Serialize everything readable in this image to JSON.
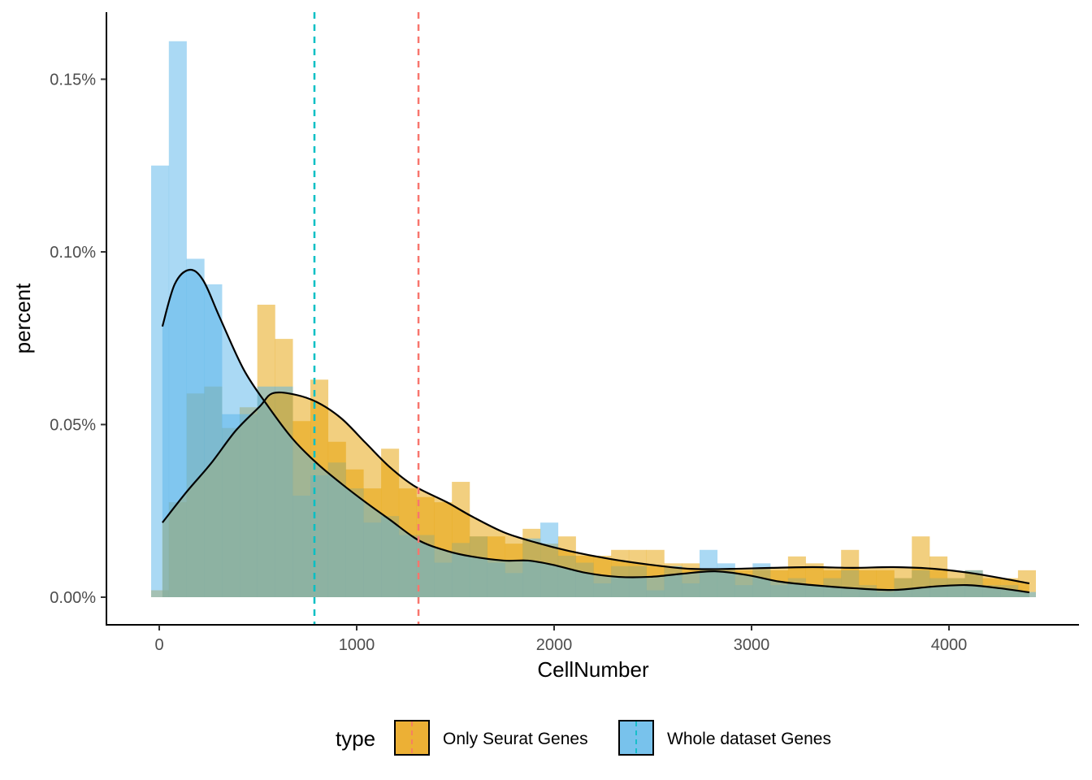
{
  "chart_data": {
    "type": "histogram",
    "title": "",
    "xlabel": "CellNumber",
    "ylabel": "percent",
    "xlim": [
      -130,
      4680
    ],
    "ylim": [
      -0.008,
      0.17
    ],
    "x_ticks": [
      0,
      1000,
      2000,
      3000,
      4000
    ],
    "x_tick_labels": [
      "0",
      "1000",
      "2000",
      "3000",
      "4000"
    ],
    "y_ticks": [
      0,
      0.05,
      0.1,
      0.15
    ],
    "y_tick_labels": [
      "0.00%",
      "0.05%",
      "0.10%",
      "0.15%"
    ],
    "grid": false,
    "legend": {
      "title": "type",
      "placement": "bottom"
    },
    "bin_start": -41,
    "binwidth": 89.6,
    "series": [
      {
        "name": "Only Seurat Genes",
        "color": "#E69F00",
        "vline_color": "#F8766D",
        "vline_x": 1313,
        "values": [
          0.002,
          0.0275,
          0.059,
          0.061,
          0.049,
          0.055,
          0.0847,
          0.0748,
          0.051,
          0.063,
          0.045,
          0.037,
          0.0315,
          0.043,
          0.0315,
          0.029,
          0.0275,
          0.0334,
          0.0176,
          0.0176,
          0.0155,
          0.0198,
          0.0155,
          0.0176,
          0.012,
          0.012,
          0.0137,
          0.0137,
          0.0137,
          0.0098,
          0.0098,
          0.0078,
          0.0078,
          0.0078,
          0.0078,
          0.0078,
          0.0118,
          0.0098,
          0.0078,
          0.0137,
          0.0078,
          0.0078,
          0.0055,
          0.0176,
          0.0118,
          0.0055,
          0.0078,
          0.0055,
          0.0055,
          0.0078
        ],
        "density": {
          "x": [
            16,
            140,
            263,
            387,
            510,
            572,
            675,
            798,
            922,
            1045,
            1169,
            1292,
            1457,
            1580,
            1745,
            1909,
            2074,
            2280,
            2486,
            2691,
            2897,
            3103,
            3309,
            3514,
            3720,
            3926,
            4132,
            4407
          ],
          "y": [
            0.0216,
            0.0306,
            0.0388,
            0.0482,
            0.0553,
            0.059,
            0.0588,
            0.0565,
            0.0518,
            0.0447,
            0.0376,
            0.0322,
            0.0275,
            0.0235,
            0.0188,
            0.0158,
            0.0134,
            0.0111,
            0.0094,
            0.0082,
            0.0082,
            0.0085,
            0.0087,
            0.0085,
            0.0087,
            0.0082,
            0.0068,
            0.004
          ]
        }
      },
      {
        "name": "Whole dataset Genes",
        "color": "#56B4E9",
        "vline_color": "#00BFC4",
        "vline_x": 786,
        "values": [
          0.125,
          0.161,
          0.098,
          0.0906,
          0.053,
          0.053,
          0.061,
          0.061,
          0.0294,
          0.0353,
          0.039,
          0.0315,
          0.0216,
          0.0235,
          0.018,
          0.018,
          0.01,
          0.0157,
          0.0176,
          0.01,
          0.007,
          0.017,
          0.0216,
          0.012,
          0.01,
          0.004,
          0.009,
          0.009,
          0.002,
          0.009,
          0.004,
          0.0137,
          0.0098,
          0.0035,
          0.0098,
          0.0035,
          0.0055,
          0.0035,
          0.0055,
          0.0078,
          0.0035,
          0.0015,
          0.0055,
          0.0078,
          0.0055,
          0.0055,
          0.0078,
          0.0035,
          0.0035,
          0.0015
        ],
        "density": {
          "x": [
            16,
            78,
            152,
            222,
            305,
            428,
            551,
            675,
            798,
            922,
            1045,
            1169,
            1313,
            1457,
            1580,
            1745,
            1868,
            1992,
            2156,
            2321,
            2486,
            2650,
            2815,
            2979,
            3144,
            3309,
            3514,
            3720,
            3926,
            4091,
            4255,
            4407
          ],
          "y": [
            0.0784,
            0.0906,
            0.0948,
            0.0918,
            0.0812,
            0.0659,
            0.0553,
            0.0459,
            0.0388,
            0.0329,
            0.0275,
            0.0224,
            0.0165,
            0.0134,
            0.0118,
            0.0106,
            0.0106,
            0.0094,
            0.0071,
            0.0059,
            0.0059,
            0.0068,
            0.0075,
            0.0064,
            0.0045,
            0.0035,
            0.0026,
            0.0021,
            0.0031,
            0.0035,
            0.0026,
            0.0014
          ]
        }
      }
    ]
  }
}
